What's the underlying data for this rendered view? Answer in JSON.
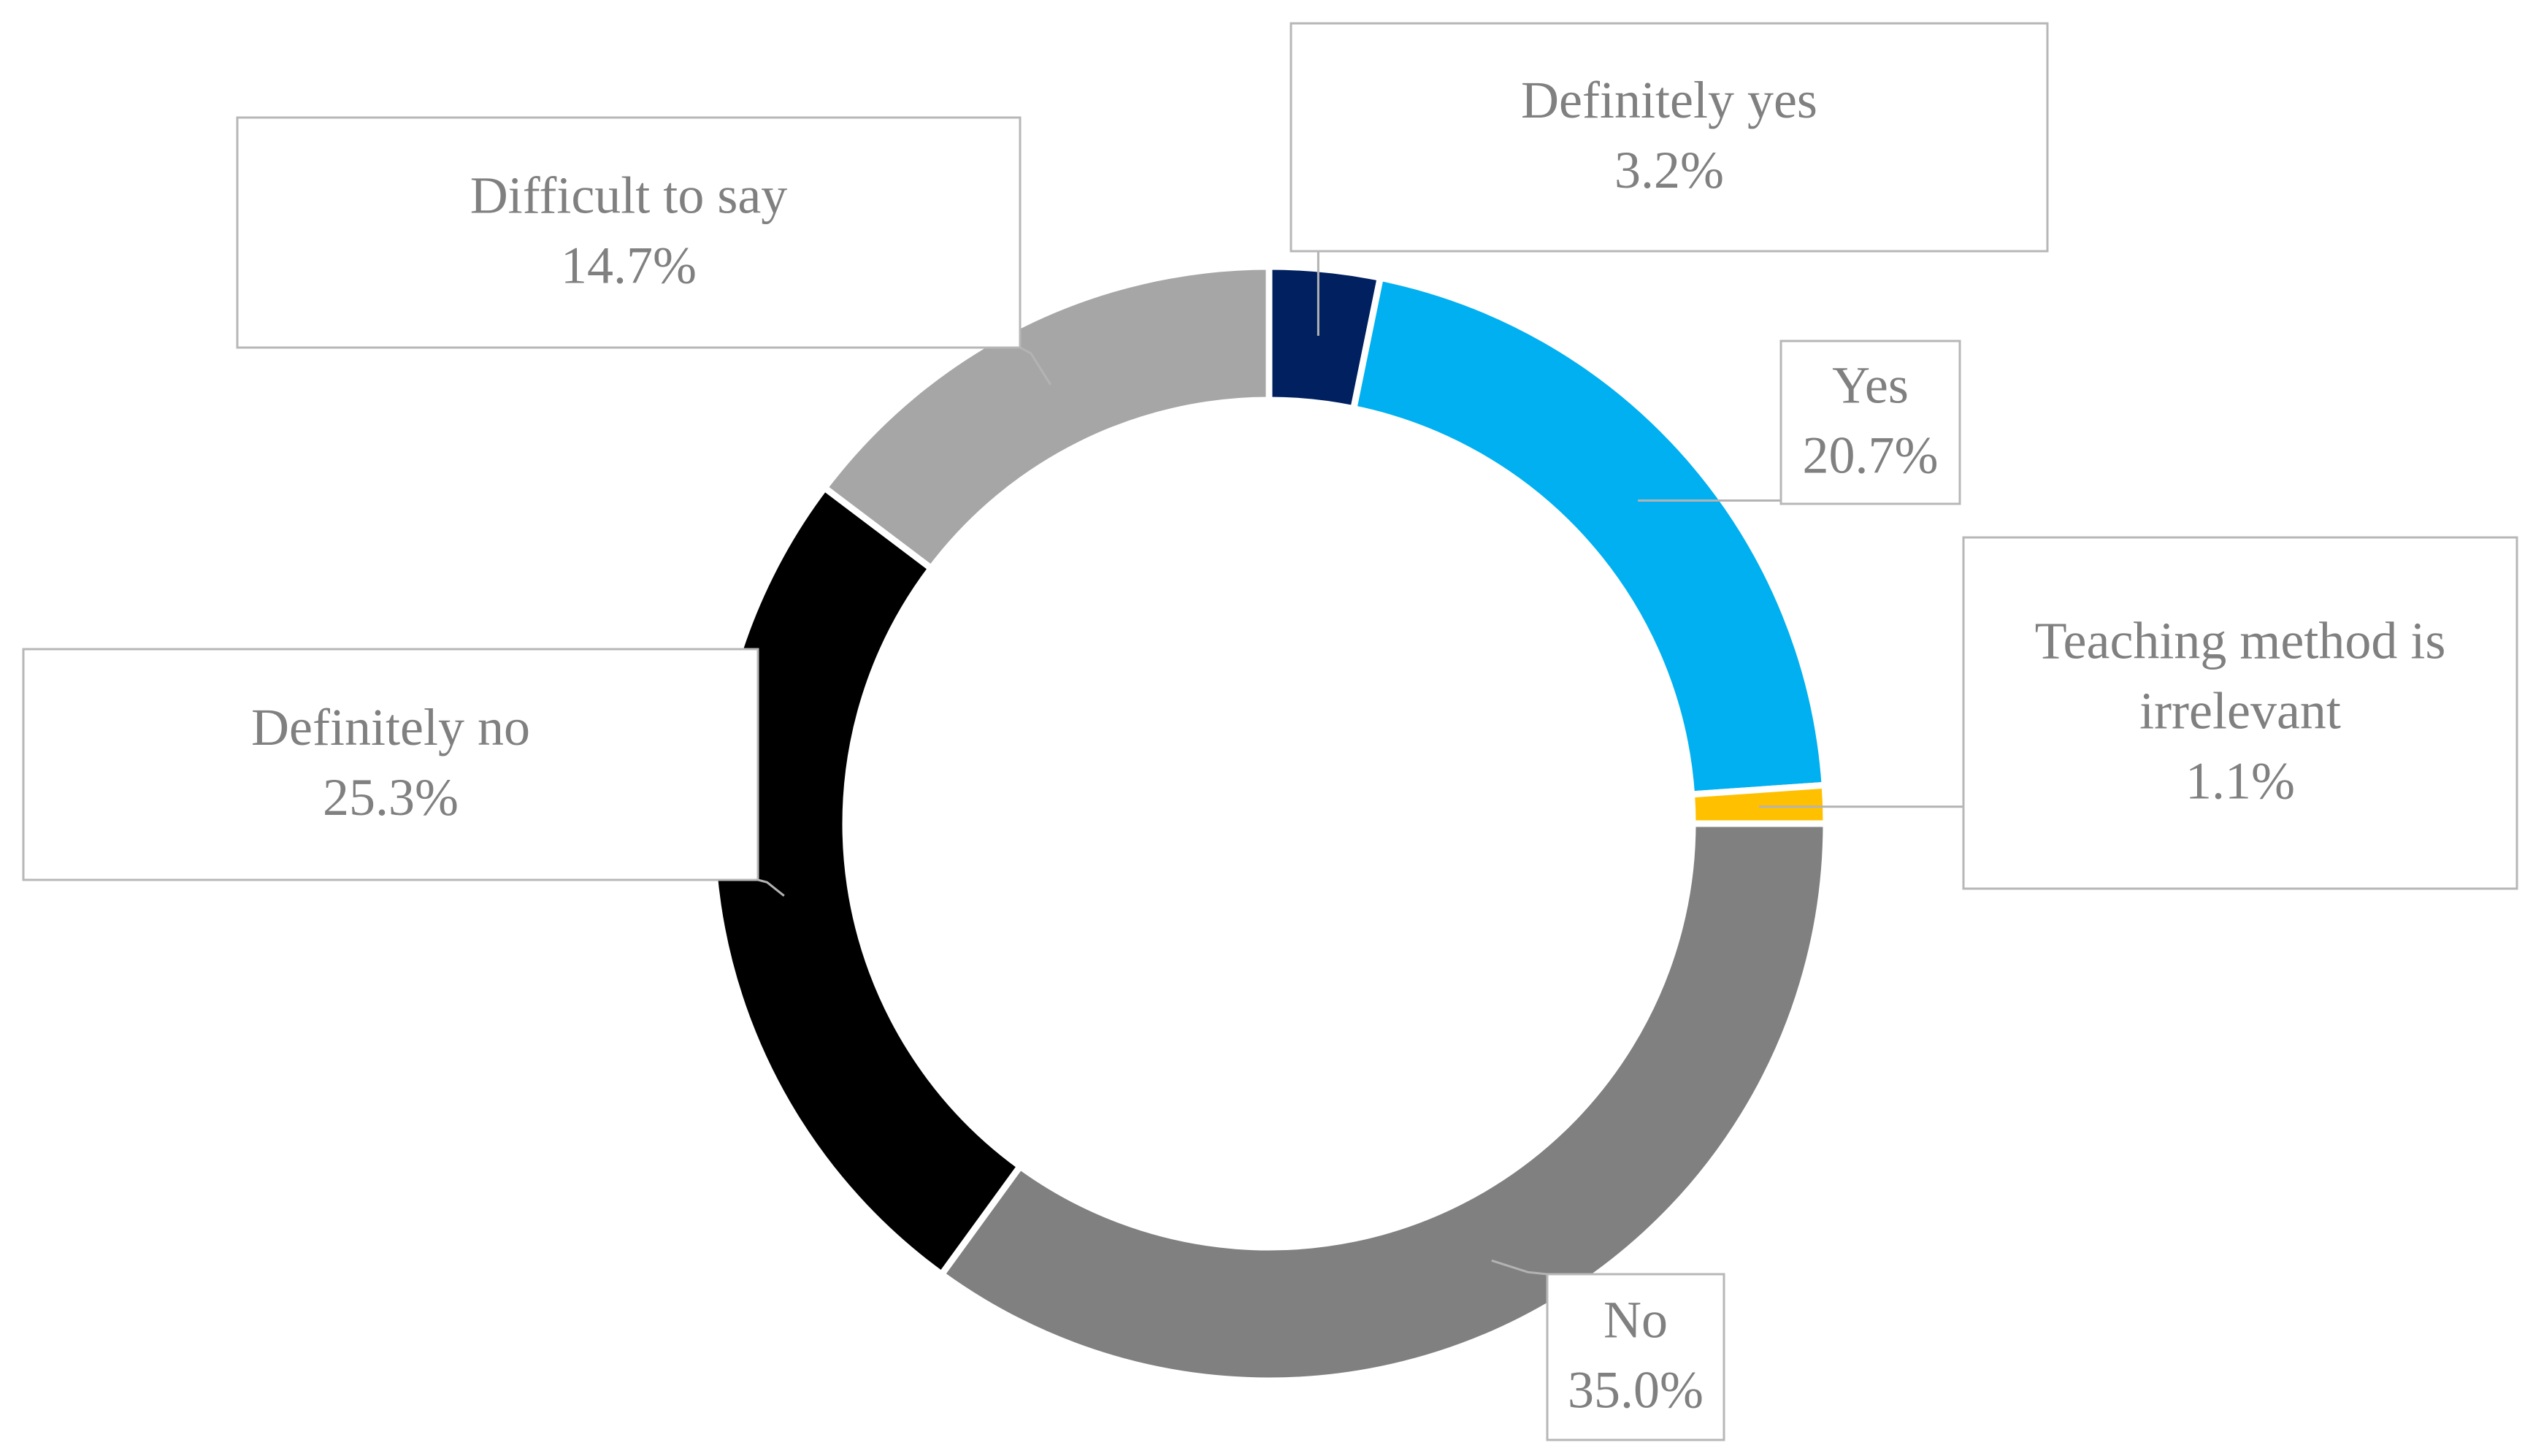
{
  "chart_data": {
    "type": "pie",
    "variant": "donut",
    "title": "",
    "legend": "none",
    "slices": [
      {
        "label": "Definitely yes",
        "value": 3.2,
        "value_label": "3.2%",
        "color": "#002060"
      },
      {
        "label": "Yes",
        "value": 20.7,
        "value_label": "20.7%",
        "color": "#00B0F0"
      },
      {
        "label": "Teaching method is irrelevant",
        "label_lines": [
          "Teaching method is",
          "irrelevant"
        ],
        "value": 1.1,
        "value_label": "1.1%",
        "color": "#FFC000"
      },
      {
        "label": "No",
        "value": 35.0,
        "value_label": "35.0%",
        "color": "#808080"
      },
      {
        "label": "Definitely no",
        "value": 25.3,
        "value_label": "25.3%",
        "color": "#000000"
      },
      {
        "label": "Difficult to say",
        "value": 14.7,
        "value_label": "14.7%",
        "color": "#A6A6A6"
      }
    ]
  }
}
